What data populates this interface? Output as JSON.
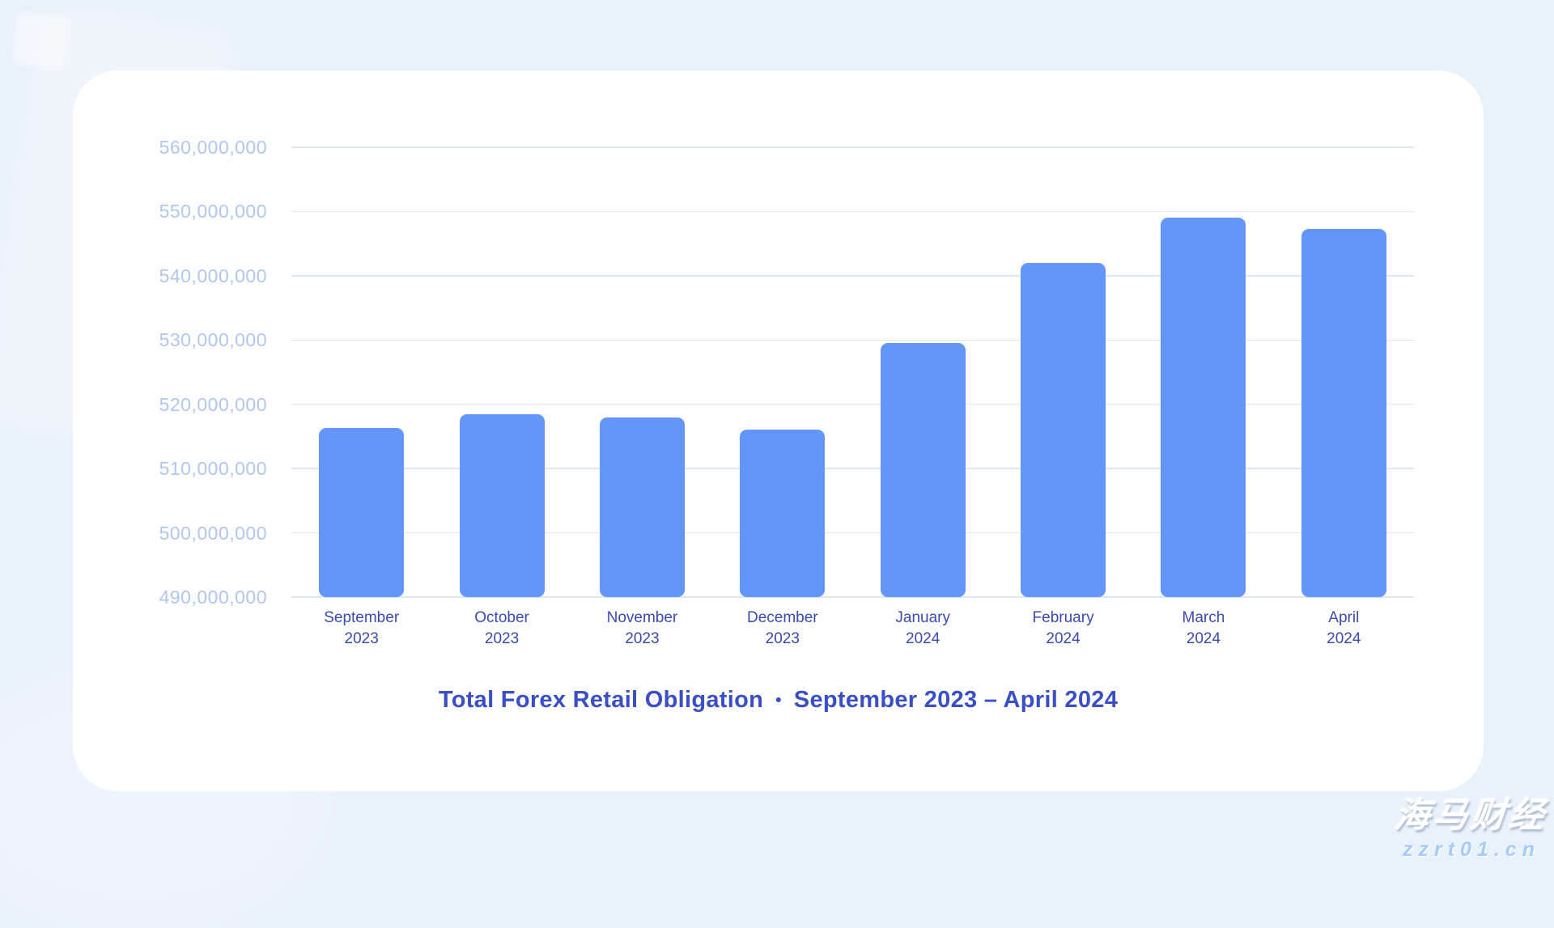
{
  "chart_data": {
    "type": "bar",
    "title_main": "Total Forex Retail Obligation",
    "title_separator": "•",
    "title_range": "September 2023 – April 2024",
    "categories": [
      "September 2023",
      "October 2023",
      "November 2023",
      "December 2023",
      "January 2024",
      "February 2024",
      "March 2024",
      "April 2024"
    ],
    "values": [
      516300000,
      518400000,
      518000000,
      516000000,
      529500000,
      542000000,
      549000000,
      547300000
    ],
    "y_tick_labels": [
      "560,000,000",
      "550,000,000",
      "540,000,000",
      "530,000,000",
      "520,000,000",
      "510,000,000",
      "500,000,000",
      "490,000,000"
    ],
    "y_tick_values": [
      560000000,
      550000000,
      540000000,
      530000000,
      520000000,
      510000000,
      500000000,
      490000000
    ],
    "ylim": [
      490000000,
      560000000
    ],
    "grid": true,
    "legend": false,
    "xlabel": "",
    "ylabel": ""
  },
  "watermark": {
    "brand": "海马财经",
    "url": "zzrt01.cn"
  },
  "colors": {
    "background": "#e9f1fb",
    "card": "#ffffff",
    "gridline": "#dfe8f6",
    "bar": "#6496fa",
    "y_label": "#b1c5ef",
    "x_label": "#3a4aad",
    "title": "#3a4ec6",
    "watermark_url": "#a6cbf4"
  }
}
